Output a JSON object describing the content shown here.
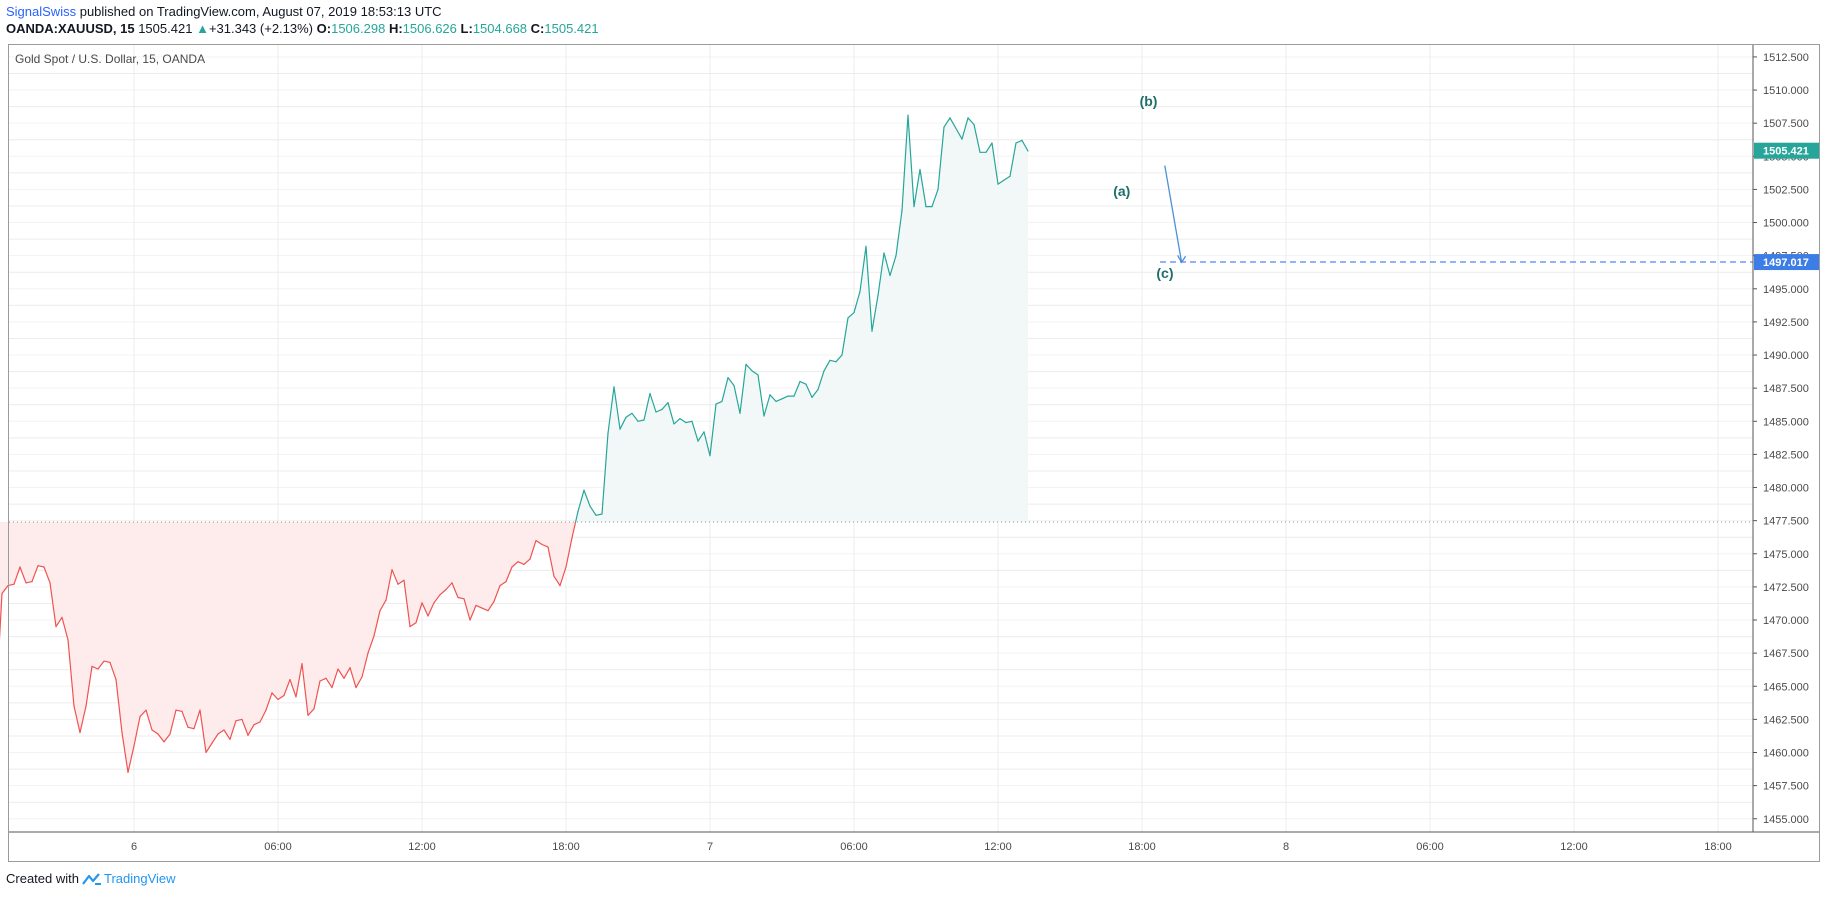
{
  "header": {
    "author": "SignalSwiss",
    "published_text": "published on TradingView.com, August 07, 2019 18:53:13 UTC",
    "symbol": "OANDA:XAUUSD, 15",
    "last": "1505.421",
    "change": "+31.343 (+2.13%)",
    "o_label": "O:",
    "o_value": "1506.298",
    "h_label": "H:",
    "h_value": "1506.626",
    "l_label": "L:",
    "l_value": "1504.668",
    "c_label": "C:",
    "c_value": "1505.421"
  },
  "legend_title": "Gold Spot / U.S. Dollar, 15, OANDA",
  "footer": {
    "created_with": "Created with",
    "brand": "TradingView"
  },
  "colors": {
    "up_line": "#26a69a",
    "down_line": "#ef5350",
    "up_fill": "#f1f8f7",
    "down_fill": "#fdeceb",
    "target_line": "#2962ff",
    "target_label_bg": "#3d7ee6",
    "current_label_bg": "#26a69a",
    "wave_label": "#1f6f68",
    "grid": "#ececec"
  },
  "chart_data": {
    "type": "line",
    "series": [
      {
        "values": [
          1464.4,
          1464.5,
          1466.1,
          1467.1,
          1468.5,
          1461.0,
          1460.8,
          1461.3,
          1463.0,
          1464.0,
          1463.8,
          1472.0,
          1472.6,
          1472.7,
          1474.0,
          1472.8,
          1472.9,
          1474.1,
          1474.0,
          1472.8,
          1469.5,
          1470.2,
          1468.5,
          1463.5,
          1461.5,
          1463.5,
          1466.5,
          1466.3,
          1466.9,
          1466.8,
          1465.5,
          1461.5,
          1458.5,
          1460.5,
          1462.7,
          1463.2,
          1461.7,
          1461.4,
          1460.8,
          1461.4,
          1463.2,
          1463.1,
          1461.9,
          1461.8,
          1463.2,
          1460.0,
          1460.7,
          1461.4,
          1461.7,
          1461.0,
          1462.4,
          1462.5,
          1461.3,
          1462.1,
          1462.3,
          1463.2,
          1464.5,
          1464.0,
          1464.3,
          1465.5,
          1464.2,
          1466.7,
          1462.8,
          1463.3,
          1465.4,
          1465.6,
          1464.9,
          1466.3,
          1465.6,
          1466.4,
          1464.9,
          1465.7,
          1467.5,
          1468.8,
          1470.7,
          1471.5,
          1473.8,
          1472.7,
          1473.0,
          1469.5,
          1469.8,
          1471.3,
          1470.3,
          1471.3,
          1471.9,
          1472.3,
          1472.8,
          1471.7,
          1471.6,
          1470.0,
          1471.1,
          1470.9,
          1470.7,
          1471.4,
          1472.6,
          1472.9,
          1474.0,
          1474.4,
          1474.2,
          1474.6,
          1476.0,
          1475.7,
          1475.5,
          1473.3,
          1472.6,
          1474.0,
          1476.2,
          1478.2,
          1479.8,
          1478.6,
          1477.9,
          1478.0,
          1484.1,
          1487.6,
          1484.4,
          1485.3,
          1485.6,
          1485.0,
          1485.1,
          1487.1,
          1485.7,
          1485.9,
          1486.4,
          1484.8,
          1485.2,
          1484.9,
          1485.0,
          1483.5,
          1484.2,
          1482.4,
          1486.3,
          1486.5,
          1488.3,
          1487.7,
          1485.6,
          1489.3,
          1488.8,
          1488.5,
          1485.4,
          1487.0,
          1486.5,
          1486.7,
          1486.9,
          1486.9,
          1488.0,
          1487.8,
          1486.8,
          1487.4,
          1488.8,
          1489.6,
          1489.5,
          1490.0,
          1492.8,
          1493.2,
          1494.8,
          1498.2,
          1491.8,
          1494.5,
          1497.7,
          1496.0,
          1497.5,
          1500.9,
          1508.1,
          1501.2,
          1504.0,
          1501.2,
          1501.2,
          1502.5,
          1507.2,
          1507.9,
          1507.1,
          1506.3,
          1507.9,
          1507.4,
          1505.3,
          1505.3,
          1506.0,
          1502.9,
          1503.2,
          1503.5,
          1506.0,
          1506.2,
          1505.4
        ],
        "first_time": "2019-08-05 15:45",
        "interval_minutes": 15
      }
    ],
    "baseline": 1477.4,
    "target_price": "1497.017",
    "target_value": 1497.017,
    "current_price": "1505.421",
    "current_value": 1505.421,
    "ylim": [
      1454.0,
      1513.4
    ],
    "yticks": [
      1455.0,
      1457.5,
      1460.0,
      1462.5,
      1465.0,
      1467.5,
      1470.0,
      1472.5,
      1475.0,
      1477.5,
      1480.0,
      1482.5,
      1485.0,
      1487.5,
      1490.0,
      1492.5,
      1495.0,
      1497.5,
      1500.0,
      1502.5,
      1505.0,
      1507.5,
      1510.0,
      1512.5
    ],
    "ytick_labels": [
      "1455.000",
      "1457.500",
      "1460.000",
      "1462.500",
      "1465.000",
      "1467.500",
      "1470.000",
      "1472.500",
      "1475.000",
      "1477.500",
      "1480.000",
      "1482.500",
      "1485.000",
      "1487.500",
      "1490.000",
      "1492.500",
      "1495.000",
      "1497.500",
      "1500.000",
      "1502.500",
      "1505.000",
      "1507.500",
      "1510.000",
      "1512.500"
    ],
    "xtick_labels": [
      "18:00",
      "6",
      "06:00",
      "12:00",
      "18:00",
      "7",
      "06:00",
      "12:00",
      "18:00",
      "8",
      "06:00",
      "12:00",
      "18:00"
    ],
    "xtick_hours": [
      -6,
      0,
      6,
      12,
      18,
      24,
      30,
      36,
      42,
      48,
      54,
      60,
      66
    ],
    "annotations": [
      {
        "text": "(b)",
        "t_hours": 41.9,
        "price": 1508.8
      },
      {
        "text": "(a)",
        "t_hours": 40.8,
        "price": 1502.0
      },
      {
        "text": "(c)",
        "t_hours": 42.6,
        "price": 1495.8
      }
    ],
    "arrow": {
      "from_hours": 42.95,
      "from_price": 1504.3,
      "to_hours": 43.65,
      "to_price": 1497.0
    },
    "target_line_start_hours": 42.75,
    "grid": true,
    "grid_rows_priced": [
      1456.25,
      1458.75,
      1461.25,
      1463.75,
      1466.25,
      1468.75,
      1471.25,
      1473.75,
      1476.25,
      1478.75,
      1481.25,
      1483.75,
      1486.25,
      1488.75,
      1491.25,
      1493.75,
      1496.25,
      1498.75,
      1501.25,
      1503.75,
      1506.25,
      1508.75,
      1511.25
    ]
  }
}
